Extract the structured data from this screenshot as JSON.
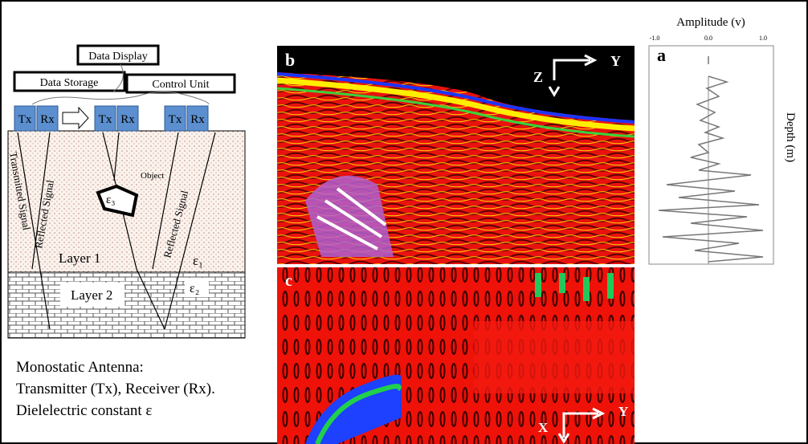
{
  "header_boxes": {
    "data_display": "Data Display",
    "data_storage": "Data Storage",
    "control_unit": "Control Unit"
  },
  "antennas": [
    {
      "tx": "Tx",
      "rx": "Rx"
    },
    {
      "tx": "Tx",
      "rx": "Rx"
    },
    {
      "tx": "Tx",
      "rx": "Rx"
    }
  ],
  "signals": {
    "transmitted": "Transmitted Signal",
    "reflected_left": "Reflected Signal",
    "reflected_right": "Reflected Signal"
  },
  "object": {
    "label": "Object",
    "permittivity": "ε₃"
  },
  "layers": [
    {
      "name": "Layer 1",
      "permittivity": "ε₁"
    },
    {
      "name": "Layer 2",
      "permittivity": "ε₂"
    }
  ],
  "legend_text": [
    "Monostatic Antenna:",
    "Transmitter (Tx), Receiver (Rx).",
    "Dielelectric  constant ε"
  ],
  "panel_b": {
    "label": "b",
    "axis_z": "Z",
    "axis_y": "Y"
  },
  "panel_c": {
    "label": "c",
    "axis_x": "X",
    "axis_y": "Y"
  },
  "panel_a": {
    "label": "a",
    "title": "Amplitude  (v)",
    "ticks": [
      "-1.0",
      "0.0",
      "1.0"
    ],
    "y_label": "Depth  (m)"
  }
}
